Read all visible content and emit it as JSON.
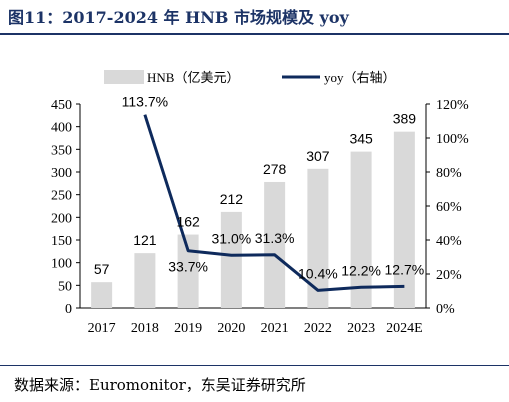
{
  "figure": {
    "title": "图11：2017-2024 年 HNB 市场规模及 yoy",
    "source": "数据来源：Euromonitor，东吴证券研究所"
  },
  "colors": {
    "bar": "#d9d9d9",
    "line": "#0e2a5c",
    "title": "#1c3366",
    "axis": "#000000"
  },
  "chart_data": {
    "type": "bar",
    "categories": [
      "2017",
      "2018",
      "2019",
      "2020",
      "2021",
      "2022",
      "2023",
      "2024E"
    ],
    "series": [
      {
        "name": "HNB（亿美元）",
        "type": "bar",
        "axis": "left",
        "values": [
          57,
          121,
          162,
          212,
          278,
          307,
          345,
          389
        ],
        "labels": [
          "57",
          "121",
          "162",
          "212",
          "278",
          "307",
          "345",
          "389"
        ]
      },
      {
        "name": "yoy（右轴）",
        "type": "line",
        "axis": "right",
        "values": [
          null,
          113.7,
          33.7,
          31.0,
          31.3,
          10.4,
          12.2,
          12.7
        ],
        "labels": [
          "",
          "113.7%",
          "33.7%",
          "31.0%",
          "31.3%",
          "10.4%",
          "12.2%",
          "12.7%"
        ]
      }
    ],
    "y_left": {
      "ylim": [
        0,
        450
      ],
      "ticks": [
        "0",
        "50",
        "100",
        "150",
        "200",
        "250",
        "300",
        "350",
        "400",
        "450"
      ]
    },
    "y_right": {
      "ylim": [
        0,
        120
      ],
      "ticks": [
        "0%",
        "20%",
        "40%",
        "60%",
        "80%",
        "100%",
        "120%"
      ]
    },
    "legend": {
      "position": "top",
      "items": [
        "HNB（亿美元）",
        "yoy（右轴）"
      ]
    },
    "grid": false
  }
}
